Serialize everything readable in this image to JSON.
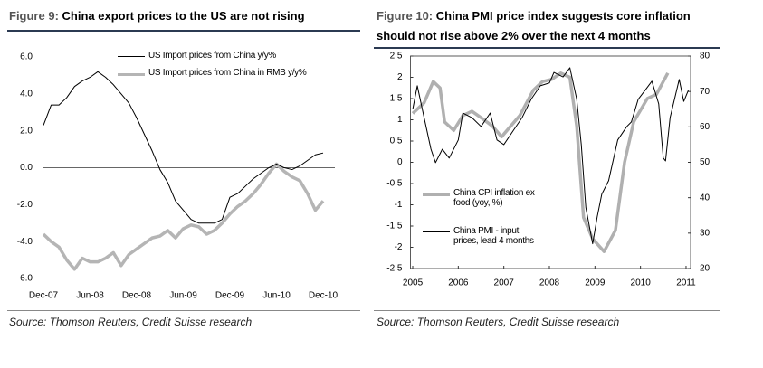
{
  "chart_data": [
    {
      "type": "line",
      "label": "Figure 9:",
      "title": "China export prices to the US are not rising",
      "source": "Source: Thomson Reuters, Credit Suisse research",
      "categories": [
        "Dec-07",
        null,
        null,
        null,
        null,
        null,
        "Jun-08",
        null,
        null,
        null,
        null,
        null,
        "Dec-08",
        null,
        null,
        null,
        null,
        null,
        "Jun-09",
        null,
        null,
        null,
        null,
        null,
        "Dec-09",
        null,
        null,
        null,
        null,
        null,
        "Jun-10",
        null,
        null,
        null,
        null,
        null,
        "Dec-10"
      ],
      "ylim": [
        -6.4,
        6.5
      ],
      "yticks": [
        {
          "value": 6,
          "label": "6.0"
        },
        {
          "value": 4,
          "label": "4.0"
        },
        {
          "value": 2,
          "label": "2.0"
        },
        {
          "value": 0,
          "label": "0.0"
        },
        {
          "value": -2,
          "label": "-2.0"
        },
        {
          "value": -4,
          "label": "-4.0"
        },
        {
          "value": -6,
          "label": "-6.0"
        }
      ],
      "zeroline": true,
      "legend": "top-center",
      "series": [
        {
          "name": "US Import prices from China y/y%",
          "color": "#000000",
          "values": [
            2.3,
            3.4,
            3.4,
            3.8,
            4.4,
            4.7,
            4.9,
            5.2,
            4.9,
            4.5,
            4.0,
            3.5,
            2.7,
            1.8,
            0.9,
            -0.1,
            -0.8,
            -1.8,
            -2.3,
            -2.8,
            -3.0,
            -3.0,
            -3.0,
            -2.8,
            -1.6,
            -1.4,
            -1.0,
            -0.6,
            -0.3,
            0.0,
            0.2,
            0.0,
            -0.1,
            0.1,
            0.4,
            0.7,
            0.8
          ]
        },
        {
          "name": "US Import prices from China in RMB y/y%",
          "color": "#b5b5b5",
          "values": [
            -3.6,
            -4.0,
            -4.3,
            -5.0,
            -5.5,
            -4.9,
            -5.1,
            -5.1,
            -4.9,
            -4.6,
            -5.3,
            -4.7,
            -4.4,
            -4.1,
            -3.8,
            -3.7,
            -3.4,
            -3.8,
            -3.3,
            -3.1,
            -3.2,
            -3.6,
            -3.4,
            -3.0,
            -2.5,
            -2.1,
            -1.8,
            -1.4,
            -0.9,
            -0.3,
            0.2,
            -0.2,
            -0.5,
            -0.7,
            -1.4,
            -2.3,
            -1.8
          ]
        }
      ]
    },
    {
      "type": "line",
      "label": "Figure 10:",
      "title": "China PMI price index suggests core inflation should not rise above 2% over the next 4 months",
      "source": "Source: Thomson Reuters, Credit Suisse research",
      "xlim": [
        2004.95,
        2011.1
      ],
      "xticks": [
        2005,
        2006,
        2007,
        2008,
        2009,
        2010,
        2011
      ],
      "ylim": [
        -2.5,
        2.5
      ],
      "yticks": [
        2.5,
        2,
        1.5,
        1,
        0.5,
        0,
        -0.5,
        -1,
        -1.5,
        -2,
        -2.5
      ],
      "y2lim": [
        20,
        80
      ],
      "y2ticks": [
        80,
        70,
        60,
        50,
        40,
        30,
        20
      ],
      "legend": "lower-left",
      "series": [
        {
          "name": "China CPI inflation ex food (yoy, %)",
          "color": "#b0b0b0",
          "x": [
            2005.0,
            2005.25,
            2005.45,
            2005.6,
            2005.7,
            2005.9,
            2006.1,
            2006.3,
            2006.5,
            2006.75,
            2006.95,
            2007.15,
            2007.35,
            2007.65,
            2007.85,
            2008.05,
            2008.25,
            2008.45,
            2008.6,
            2008.75,
            2008.95,
            2009.2,
            2009.45,
            2009.65,
            2009.85,
            2010.15,
            2010.35,
            2010.6
          ],
          "values": [
            1.15,
            1.4,
            1.9,
            1.75,
            0.95,
            0.75,
            1.1,
            1.2,
            1.05,
            0.85,
            0.6,
            0.85,
            1.1,
            1.7,
            1.9,
            1.95,
            2.1,
            2.0,
            0.85,
            -1.3,
            -1.8,
            -2.1,
            -1.6,
            0.0,
            0.95,
            1.5,
            1.6,
            2.1
          ]
        },
        {
          "name": "China PMI - input prices, lead 4 months",
          "color": "#000000",
          "axis": "y2",
          "x": [
            2005.0,
            2005.1,
            2005.25,
            2005.4,
            2005.5,
            2005.65,
            2005.8,
            2006.0,
            2006.1,
            2006.3,
            2006.5,
            2006.7,
            2006.85,
            2007.0,
            2007.2,
            2007.4,
            2007.6,
            2007.8,
            2008.0,
            2008.1,
            2008.3,
            2008.45,
            2008.6,
            2008.7,
            2008.8,
            2008.95,
            2009.05,
            2009.15,
            2009.3,
            2009.5,
            2009.7,
            2009.8,
            2009.95,
            2010.1,
            2010.25,
            2010.4,
            2010.5,
            2010.55,
            2010.65,
            2010.85,
            2010.95,
            2011.05
          ],
          "values": [
            65,
            71.6,
            62.6,
            53.7,
            49.9,
            53.7,
            51.2,
            56.3,
            63.9,
            62.6,
            60.1,
            63.9,
            56.3,
            55,
            58.8,
            62.6,
            67.8,
            71.6,
            72.4,
            75.4,
            74.1,
            76.7,
            67.8,
            55,
            37.2,
            27,
            34.6,
            41,
            44.8,
            56.3,
            60.1,
            61.4,
            67.8,
            70.3,
            72.9,
            66.5,
            51.2,
            50.4,
            62.6,
            73.4,
            67.2,
            70.3
          ]
        }
      ]
    }
  ]
}
